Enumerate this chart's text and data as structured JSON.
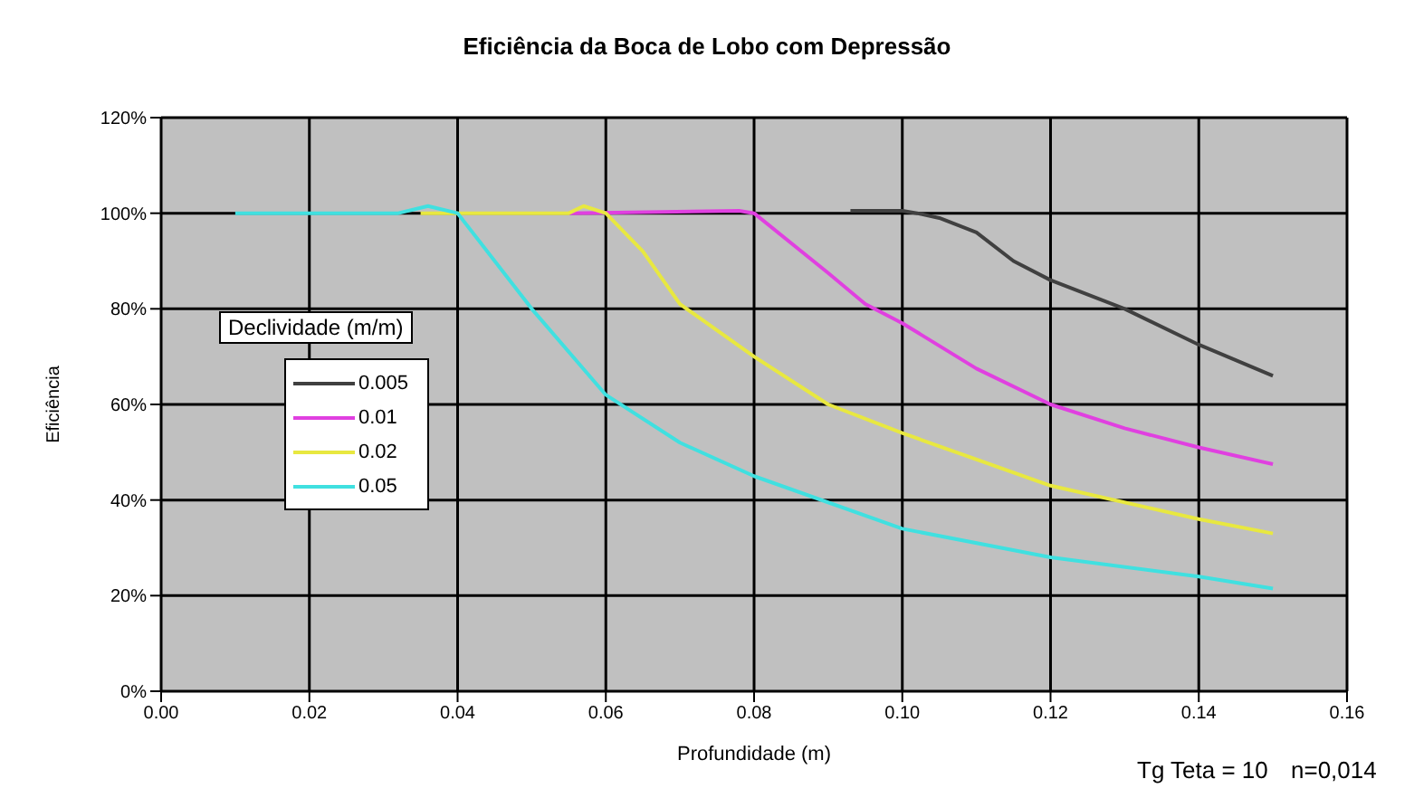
{
  "chart_data": {
    "type": "line",
    "title": "Eficiência da Boca de Lobo com Depressão",
    "xlabel": "Profundidade (m)",
    "ylabel": "Eficiência",
    "legend_title": "Declividade (m/m)",
    "xlim": [
      0,
      0.16
    ],
    "xticks": [
      {
        "value": 0,
        "label": "0.00"
      },
      0.02,
      0.04,
      0.06,
      0.08,
      {
        "value": 0.1,
        "label": "0.10"
      },
      0.12,
      0.14,
      0.16
    ],
    "ylim": [
      0,
      120
    ],
    "yticks": [
      {
        "value": 0,
        "label": "0%"
      },
      {
        "value": 20,
        "label": "20%"
      },
      {
        "value": 40,
        "label": "40%"
      },
      {
        "value": 60,
        "label": "60%"
      },
      {
        "value": 80,
        "label": "80%"
      },
      {
        "value": 100,
        "label": "100%"
      },
      {
        "value": 120,
        "label": "120%"
      }
    ],
    "grid": true,
    "legend": "left",
    "marker": "none",
    "line_style": "solid",
    "series": [
      {
        "name": "0.005",
        "color": "#404040",
        "x": [
          0.093,
          0.1,
          0.102,
          0.105,
          0.11,
          0.115,
          0.12,
          0.13,
          0.14,
          0.15
        ],
        "values": [
          100.5,
          100.5,
          100,
          99,
          96,
          90,
          86,
          80,
          72.5,
          66
        ]
      },
      {
        "name": "0.01",
        "color": "#e040e0",
        "x": [
          0.055,
          0.078,
          0.08,
          0.09,
          0.095,
          0.1,
          0.11,
          0.12,
          0.13,
          0.14,
          0.15
        ],
        "values": [
          100,
          100.5,
          100,
          87.5,
          81,
          77,
          67.5,
          60,
          55,
          51,
          47.5
        ]
      },
      {
        "name": "0.02",
        "color": "#e8e840",
        "x": [
          0.035,
          0.055,
          0.057,
          0.06,
          0.065,
          0.07,
          0.08,
          0.09,
          0.1,
          0.12,
          0.14,
          0.15
        ],
        "values": [
          100,
          100,
          101.5,
          100,
          92,
          81,
          70,
          60,
          54,
          43,
          36,
          33
        ]
      },
      {
        "name": "0.05",
        "color": "#40e0e0",
        "x": [
          0.01,
          0.032,
          0.036,
          0.04,
          0.05,
          0.06,
          0.07,
          0.08,
          0.1,
          0.12,
          0.14,
          0.15
        ],
        "values": [
          100,
          100,
          101.5,
          100,
          80,
          62,
          52,
          45,
          34,
          28,
          24,
          21.5
        ]
      }
    ],
    "annotations": [
      "Tg Teta = 10",
      "n=0,014"
    ]
  }
}
